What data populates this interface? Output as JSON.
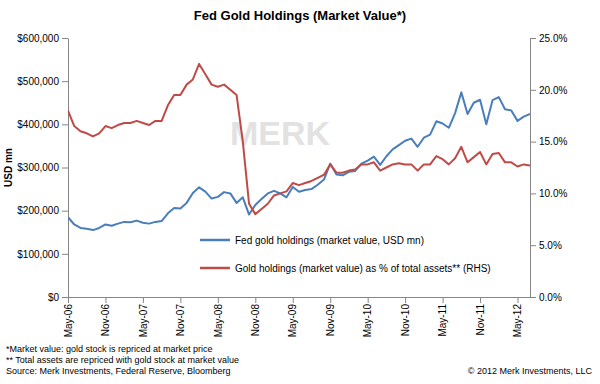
{
  "chart_data": {
    "type": "line",
    "title": "Fed Gold Holdings (Market Value*)",
    "y_label": "USD mn",
    "watermark": "MERK",
    "footnotes": [
      "*Market value: gold stock is repriced at market price",
      "** Total assets are repriced with gold stock at market value",
      "Source: Merk Investments, Federal Reserve, Bloomberg"
    ],
    "copyright": "© 2012 Merk Investments, LLC",
    "categories": [
      "May-06",
      null,
      null,
      null,
      null,
      null,
      "Nov-06",
      null,
      null,
      null,
      null,
      null,
      "May-07",
      null,
      null,
      null,
      null,
      null,
      "Nov-07",
      null,
      null,
      null,
      null,
      null,
      "May-08",
      null,
      null,
      null,
      null,
      null,
      "Nov-08",
      null,
      null,
      null,
      null,
      null,
      "May-09",
      null,
      null,
      null,
      null,
      null,
      "Nov-09",
      null,
      null,
      null,
      null,
      null,
      "May-10",
      null,
      null,
      null,
      null,
      null,
      "Nov-10",
      null,
      null,
      null,
      null,
      null,
      "May-11",
      null,
      null,
      null,
      null,
      null,
      "Nov-11",
      null,
      null,
      null,
      null,
      null,
      "May-12",
      null,
      null
    ],
    "ylim": [
      0,
      600000
    ],
    "yticks": [
      {
        "value": 0,
        "label": "$0"
      },
      {
        "value": 100000,
        "label": "$100,000"
      },
      {
        "value": 200000,
        "label": "$200,000"
      },
      {
        "value": 300000,
        "label": "$300,000"
      },
      {
        "value": 400000,
        "label": "$400,000"
      },
      {
        "value": 500000,
        "label": "$500,000"
      },
      {
        "value": 600000,
        "label": "$600,000"
      }
    ],
    "y2lim": [
      0,
      25
    ],
    "y2ticks": [
      {
        "value": 0,
        "label": "0.0%"
      },
      {
        "value": 5,
        "label": "5.0%"
      },
      {
        "value": 10,
        "label": "10.0%"
      },
      {
        "value": 15,
        "label": "15.0%"
      },
      {
        "value": 20,
        "label": "20.0%"
      },
      {
        "value": 25,
        "label": "25.0%"
      }
    ],
    "grid": false,
    "legend": "bottom",
    "series": [
      {
        "name": "Fed gold holdings (market value, USD mn)",
        "color": "#4a7ebb",
        "values": [
          185000,
          168000,
          160000,
          158000,
          155000,
          160000,
          168000,
          165000,
          170000,
          174000,
          173000,
          177000,
          172000,
          170000,
          174000,
          176000,
          194000,
          206000,
          205000,
          218000,
          241000,
          254000,
          244000,
          228000,
          232000,
          243000,
          240000,
          218000,
          231000,
          191000,
          213000,
          227000,
          240000,
          246000,
          240000,
          231000,
          255000,
          244000,
          248000,
          250000,
          260000,
          272000,
          309000,
          284000,
          282000,
          290000,
          292000,
          309000,
          316000,
          325000,
          306000,
          326000,
          342000,
          352000,
          362000,
          367000,
          348000,
          369000,
          376000,
          407000,
          402000,
          392000,
          426000,
          474000,
          424000,
          450000,
          457000,
          400000,
          456000,
          463000,
          435000,
          432000,
          408000,
          418000,
          424000
        ]
      },
      {
        "name": "Gold holdings (market value) as % of total assets** (RHS)",
        "color": "#be4b48",
        "axis": "y2",
        "values": [
          18.0,
          16.5,
          16.0,
          15.8,
          15.5,
          15.8,
          16.5,
          16.3,
          16.6,
          16.8,
          16.8,
          17.0,
          16.8,
          16.6,
          17.0,
          17.0,
          18.5,
          19.5,
          19.5,
          20.5,
          21.0,
          22.5,
          21.5,
          20.5,
          20.3,
          20.5,
          20.0,
          19.5,
          15.0,
          9.0,
          8.0,
          8.5,
          9.0,
          9.8,
          10.0,
          10.2,
          11.0,
          10.8,
          11.0,
          11.2,
          11.5,
          11.8,
          12.8,
          12.0,
          12.0,
          12.2,
          12.3,
          12.8,
          12.8,
          13.0,
          12.2,
          12.5,
          12.8,
          12.9,
          12.8,
          12.8,
          12.2,
          12.8,
          12.8,
          13.6,
          13.3,
          12.8,
          13.4,
          14.5,
          13.0,
          13.5,
          14.0,
          12.8,
          13.8,
          13.9,
          13.0,
          13.0,
          12.6,
          12.8,
          12.7
        ]
      }
    ]
  }
}
